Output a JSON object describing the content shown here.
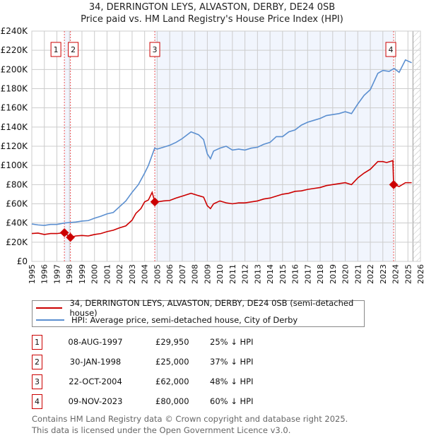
{
  "header": {
    "title": "34, DERRINGTON LEYS, ALVASTON, DERBY, DE24 0SB",
    "subtitle": "Price paid vs. HM Land Registry's House Price Index (HPI)"
  },
  "chart_data": {
    "type": "line",
    "title": "34, DERRINGTON LEYS, ALVASTON, DERBY, DE24 0SB",
    "subtitle": "Price paid vs. HM Land Registry's House Price Index (HPI)",
    "xlim": [
      1995,
      2026
    ],
    "ylim": [
      0,
      240000
    ],
    "grid": true,
    "x_ticks": [
      "1995",
      "1996",
      "1997",
      "1998",
      "1999",
      "2000",
      "2001",
      "2002",
      "2003",
      "2004",
      "2005",
      "2006",
      "2007",
      "2008",
      "2009",
      "2010",
      "2011",
      "2012",
      "2013",
      "2014",
      "2015",
      "2016",
      "2017",
      "2018",
      "2019",
      "2020",
      "2021",
      "2022",
      "2023",
      "2024",
      "2025",
      "2026"
    ],
    "y_ticks": [
      {
        "value": 0,
        "label": "£0"
      },
      {
        "value": 20000,
        "label": "£20K"
      },
      {
        "value": 40000,
        "label": "£40K"
      },
      {
        "value": 60000,
        "label": "£60K"
      },
      {
        "value": 80000,
        "label": "£80K"
      },
      {
        "value": 100000,
        "label": "£100K"
      },
      {
        "value": 120000,
        "label": "£120K"
      },
      {
        "value": 140000,
        "label": "£140K"
      },
      {
        "value": 160000,
        "label": "£160K"
      },
      {
        "value": 180000,
        "label": "£180K"
      },
      {
        "value": 200000,
        "label": "£200K"
      },
      {
        "value": 220000,
        "label": "£220K"
      },
      {
        "value": 240000,
        "label": "£240K"
      }
    ],
    "forecast_from": 2025.4,
    "series": [
      {
        "name": "34, DERRINGTON LEYS, ALVASTON, DERBY, DE24 0SB (semi-detached house)",
        "color": "#cc0000",
        "points": [
          [
            1995,
            29000
          ],
          [
            1995.5,
            29500
          ],
          [
            1996,
            28000
          ],
          [
            1996.5,
            29000
          ],
          [
            1997,
            29000
          ],
          [
            1997.6,
            29950
          ],
          [
            1998.08,
            25000
          ],
          [
            1998.5,
            26500
          ],
          [
            1999,
            27000
          ],
          [
            1999.5,
            26500
          ],
          [
            2000,
            28000
          ],
          [
            2000.5,
            29000
          ],
          [
            2001,
            31000
          ],
          [
            2001.5,
            32500
          ],
          [
            2002,
            35000
          ],
          [
            2002.5,
            37000
          ],
          [
            2003,
            43000
          ],
          [
            2003.3,
            50000
          ],
          [
            2003.7,
            55000
          ],
          [
            2004,
            62000
          ],
          [
            2004.3,
            64000
          ],
          [
            2004.6,
            72000
          ],
          [
            2004.81,
            62000
          ],
          [
            2005,
            62000
          ],
          [
            2005.5,
            63000
          ],
          [
            2006,
            63500
          ],
          [
            2006.5,
            66000
          ],
          [
            2007,
            68000
          ],
          [
            2007.7,
            71000
          ],
          [
            2008.3,
            68500
          ],
          [
            2008.7,
            67000
          ],
          [
            2009,
            58000
          ],
          [
            2009.25,
            55000
          ],
          [
            2009.5,
            60000
          ],
          [
            2010,
            63000
          ],
          [
            2010.5,
            61000
          ],
          [
            2011,
            60000
          ],
          [
            2011.5,
            61000
          ],
          [
            2012,
            61000
          ],
          [
            2012.5,
            62000
          ],
          [
            2013,
            63000
          ],
          [
            2013.5,
            65000
          ],
          [
            2014,
            66000
          ],
          [
            2014.5,
            68000
          ],
          [
            2015,
            70000
          ],
          [
            2015.5,
            71000
          ],
          [
            2016,
            73000
          ],
          [
            2016.5,
            73500
          ],
          [
            2017,
            75000
          ],
          [
            2017.5,
            76000
          ],
          [
            2018,
            77000
          ],
          [
            2018.5,
            79000
          ],
          [
            2019,
            80000
          ],
          [
            2019.5,
            81000
          ],
          [
            2020,
            82000
          ],
          [
            2020.5,
            80000
          ],
          [
            2021,
            87000
          ],
          [
            2021.5,
            92000
          ],
          [
            2022,
            96000
          ],
          [
            2022.6,
            104000
          ],
          [
            2023,
            104000
          ],
          [
            2023.3,
            103000
          ],
          [
            2023.8,
            105000
          ],
          [
            2023.86,
            80000
          ],
          [
            2024.3,
            78000
          ],
          [
            2024.8,
            82000
          ],
          [
            2025.3,
            82000
          ]
        ]
      },
      {
        "name": "HPI: Average price, semi-detached house, City of Derby",
        "color": "#5b8fd0",
        "points": [
          [
            1995,
            39000
          ],
          [
            1995.5,
            38000
          ],
          [
            1996,
            37500
          ],
          [
            1996.5,
            38500
          ],
          [
            1997,
            38500
          ],
          [
            1997.6,
            40000
          ],
          [
            1998,
            40500
          ],
          [
            1998.5,
            41000
          ],
          [
            1999,
            42000
          ],
          [
            1999.5,
            42500
          ],
          [
            2000,
            45000
          ],
          [
            2000.5,
            47000
          ],
          [
            2001,
            49500
          ],
          [
            2001.5,
            51000
          ],
          [
            2002,
            57000
          ],
          [
            2002.5,
            63000
          ],
          [
            2003,
            72000
          ],
          [
            2003.5,
            80000
          ],
          [
            2004,
            92000
          ],
          [
            2004.3,
            100000
          ],
          [
            2004.8,
            118000
          ],
          [
            2005,
            117000
          ],
          [
            2005.5,
            119000
          ],
          [
            2006,
            121000
          ],
          [
            2006.5,
            124000
          ],
          [
            2007,
            128000
          ],
          [
            2007.7,
            135000
          ],
          [
            2008.3,
            132000
          ],
          [
            2008.7,
            127000
          ],
          [
            2009,
            112000
          ],
          [
            2009.25,
            107000
          ],
          [
            2009.5,
            115000
          ],
          [
            2010,
            118000
          ],
          [
            2010.5,
            120000
          ],
          [
            2011,
            116000
          ],
          [
            2011.5,
            117000
          ],
          [
            2012,
            116000
          ],
          [
            2012.5,
            118000
          ],
          [
            2013,
            119000
          ],
          [
            2013.5,
            122000
          ],
          [
            2014,
            124000
          ],
          [
            2014.5,
            130000
          ],
          [
            2015,
            130000
          ],
          [
            2015.5,
            135000
          ],
          [
            2016,
            137000
          ],
          [
            2016.5,
            142000
          ],
          [
            2017,
            145000
          ],
          [
            2017.5,
            147000
          ],
          [
            2018,
            149000
          ],
          [
            2018.5,
            152000
          ],
          [
            2019,
            153000
          ],
          [
            2019.5,
            154000
          ],
          [
            2020,
            156000
          ],
          [
            2020.5,
            154000
          ],
          [
            2021,
            164000
          ],
          [
            2021.5,
            173000
          ],
          [
            2022,
            179000
          ],
          [
            2022.6,
            196000
          ],
          [
            2023,
            199000
          ],
          [
            2023.5,
            198000
          ],
          [
            2023.9,
            201000
          ],
          [
            2024.3,
            197000
          ],
          [
            2024.8,
            210000
          ],
          [
            2025.3,
            207000
          ]
        ]
      }
    ],
    "sales": [
      {
        "id": "1",
        "x": 1997.6,
        "y": 29950
      },
      {
        "id": "2",
        "x": 1998.08,
        "y": 25000
      },
      {
        "id": "3",
        "x": 2004.81,
        "y": 62000
      },
      {
        "id": "4",
        "x": 2023.86,
        "y": 80000
      }
    ],
    "shaded_ranges": [
      [
        1997.6,
        1998.08
      ],
      [
        2004.81,
        2023.86
      ]
    ]
  },
  "legend": {
    "items": [
      {
        "label": "34, DERRINGTON LEYS, ALVASTON, DERBY, DE24 0SB (semi-detached house)",
        "color": "#cc0000"
      },
      {
        "label": "HPI: Average price, semi-detached house, City of Derby",
        "color": "#5b8fd0"
      }
    ]
  },
  "table": {
    "rows": [
      {
        "num": "1",
        "date": "08-AUG-1997",
        "price": "£29,950",
        "hpi": "25% ↓ HPI"
      },
      {
        "num": "2",
        "date": "30-JAN-1998",
        "price": "£25,000",
        "hpi": "37% ↓ HPI"
      },
      {
        "num": "3",
        "date": "22-OCT-2004",
        "price": "£62,000",
        "hpi": "48% ↓ HPI"
      },
      {
        "num": "4",
        "date": "09-NOV-2023",
        "price": "£80,000",
        "hpi": "60% ↓ HPI"
      }
    ]
  },
  "footer": {
    "line1": "Contains HM Land Registry data © Crown copyright and database right 2025.",
    "line2": "This data is licensed under the Open Government Licence v3.0."
  }
}
